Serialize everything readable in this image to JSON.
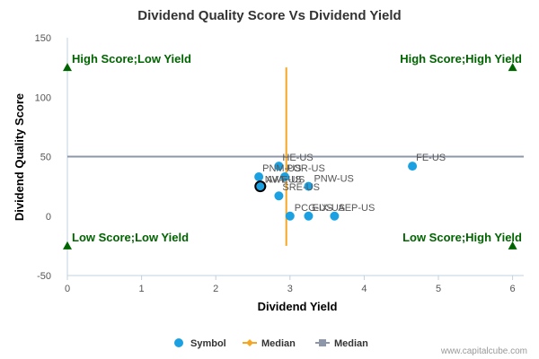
{
  "chart_data": {
    "type": "scatter",
    "title": "Dividend Quality Score Vs Dividend Yield",
    "xlabel": "Dividend Yield",
    "ylabel": "Dividend Quality Score",
    "xlim": [
      0,
      6.15
    ],
    "ylim": [
      -50,
      150
    ],
    "x_ticks": [
      "0",
      "1",
      "2",
      "3",
      "4",
      "5",
      "6"
    ],
    "y_ticks": [
      "-50",
      "0",
      "50",
      "100",
      "150"
    ],
    "median_x": 2.95,
    "median_y": 50,
    "median_x_range": [
      -25,
      125
    ],
    "points": [
      {
        "label": "HE-US",
        "x": 2.85,
        "y": 42
      },
      {
        "label": "PNM-US",
        "x": 2.58,
        "y": 33
      },
      {
        "label": "POR-US",
        "x": 2.93,
        "y": 33
      },
      {
        "label": "AVA-US",
        "x": 2.62,
        "y": 25
      },
      {
        "label": "NWE-US",
        "x": 2.6,
        "y": 25
      },
      {
        "label": "PNW-US",
        "x": 3.25,
        "y": 25
      },
      {
        "label": "SRE-US",
        "x": 2.85,
        "y": 17
      },
      {
        "label": "PCG-US",
        "x": 3.0,
        "y": 0
      },
      {
        "label": "EIX-US",
        "x": 3.25,
        "y": 0
      },
      {
        "label": "AEP-US",
        "x": 3.6,
        "y": 0
      },
      {
        "label": "FE-US",
        "x": 4.65,
        "y": 42
      }
    ],
    "highlight": {
      "label": "NWE-US",
      "x": 2.6,
      "y": 25
    },
    "quadrants": {
      "top_left": "High Score;Low Yield",
      "top_right": "High Score;High Yield",
      "bottom_left": "Low Score;Low Yield",
      "bottom_right": "Low Score;High Yield"
    },
    "legend": [
      {
        "name": "Symbol",
        "marker": "circle"
      },
      {
        "name": "Median",
        "marker": "diamond-line"
      },
      {
        "name": "Median",
        "marker": "square-line"
      }
    ],
    "credit": "www.capitalcube.com",
    "grid": false
  },
  "colors": {
    "points": "#1ba1e2",
    "median_x_line": "#f5a623",
    "median_y_line": "#8e97a8",
    "quadrant_text": "#006400",
    "quadrant_marker": "#006400",
    "axis": "#c0d0e0"
  }
}
